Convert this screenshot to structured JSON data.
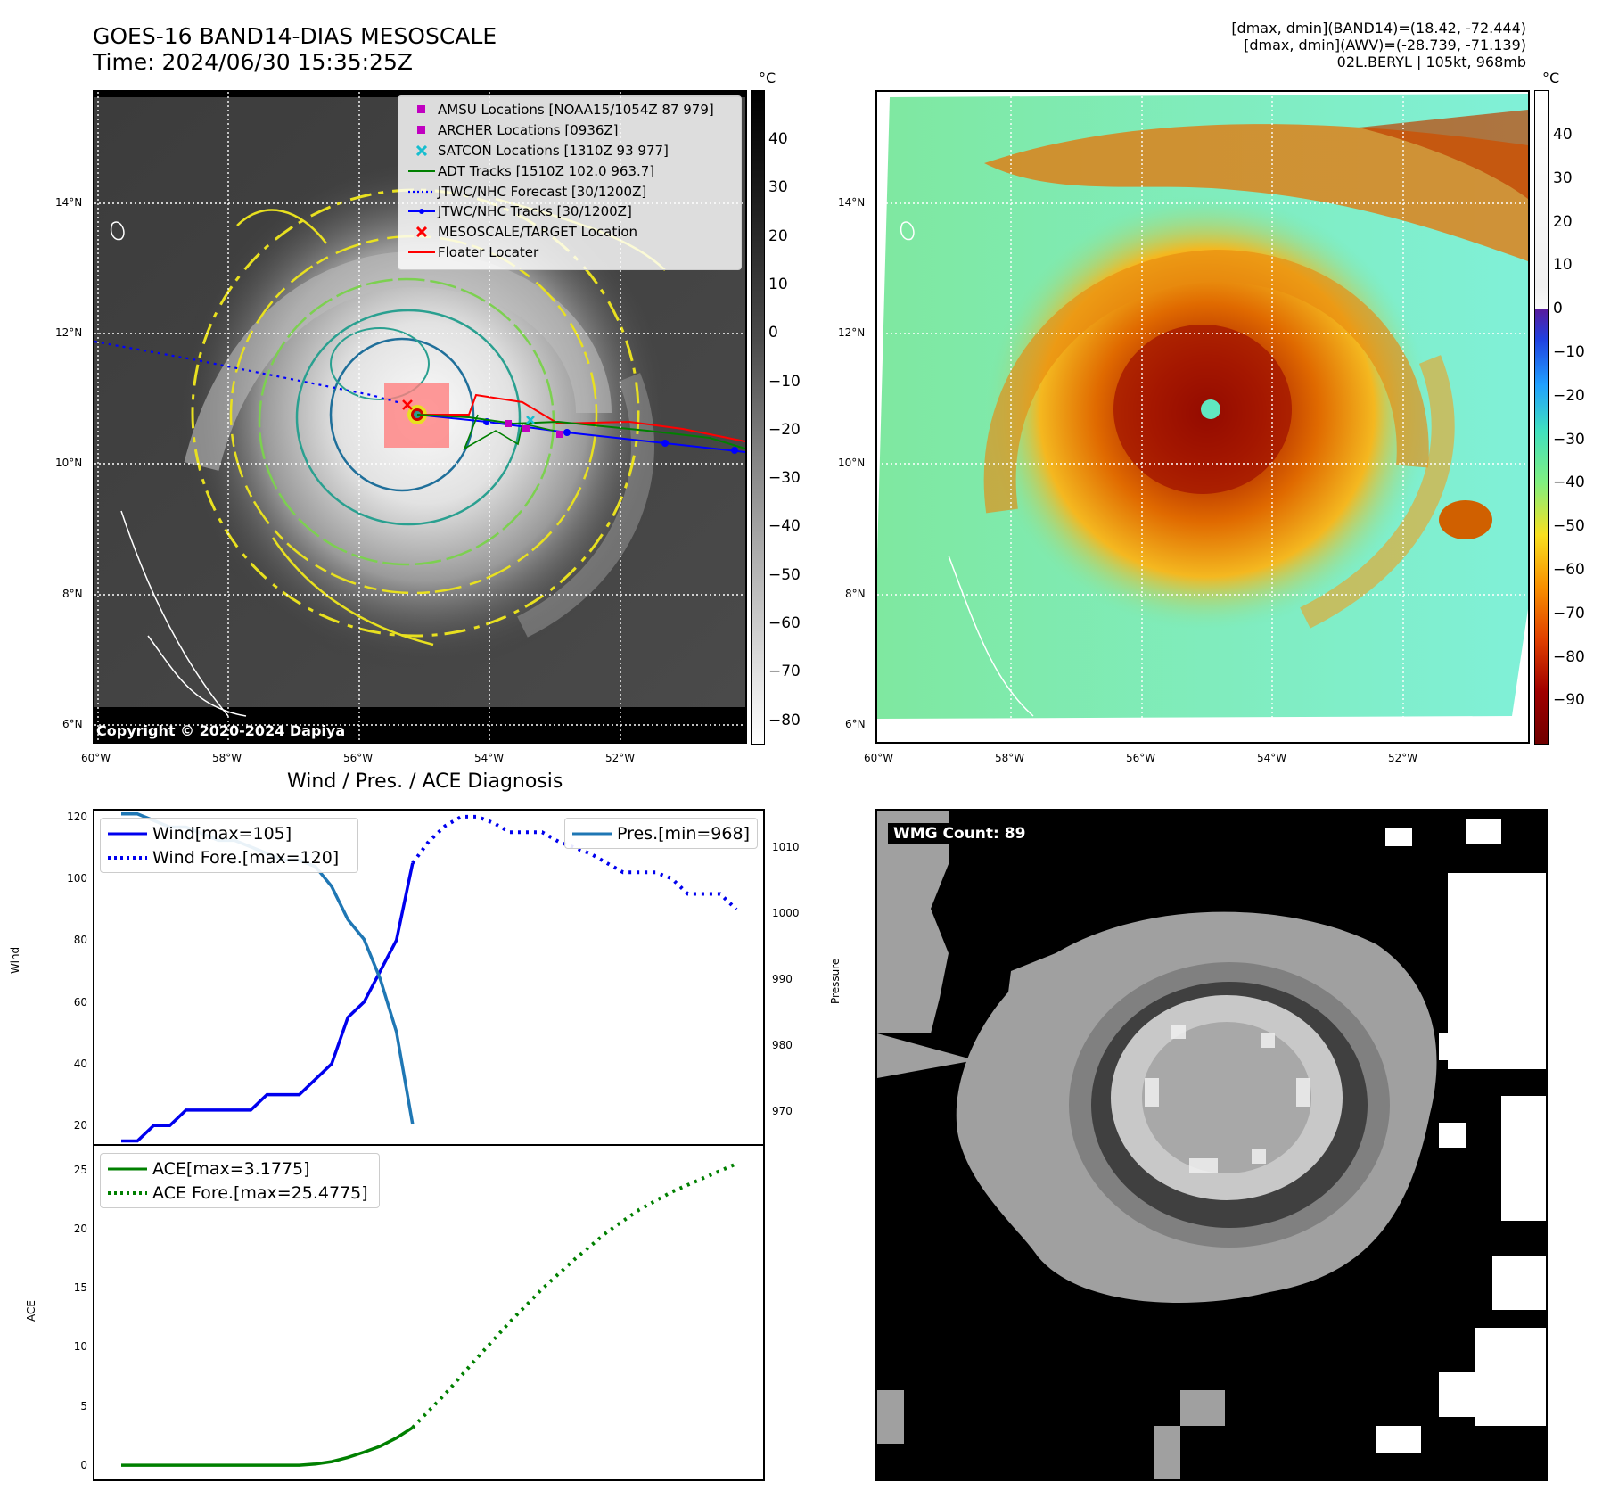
{
  "header": {
    "title_line1": "GOES-16 BAND14-DIAS MESOSCALE",
    "title_line2": "Time: 2024/06/30 15:35:25Z",
    "right_line1": "[dmax, dmin](BAND14)=(18.42, -72.444)",
    "right_line2": "[dmax, dmin](AWV)=(-28.739, -71.139)",
    "right_line3": "02L.BERYL | 105kt, 968mb"
  },
  "map": {
    "lon_labels": [
      "60°W",
      "58°W",
      "56°W",
      "54°W",
      "52°W"
    ],
    "lat_labels": [
      "14°N",
      "12°N",
      "10°N",
      "8°N",
      "6°N"
    ],
    "copyright": "Copyright © 2020-2024 Dapiya",
    "legend": [
      {
        "label": "AMSU Locations [NOAA15/1054Z 87 979]",
        "icon": "square-marker",
        "color": "#c000c0"
      },
      {
        "label": "ARCHER Locations [0936Z]",
        "icon": "square-marker",
        "color": "#c000c0"
      },
      {
        "label": "SATCON Locations [1310Z 93 977]",
        "icon": "x-marker",
        "color": "#17becf"
      },
      {
        "label": "ADT Tracks [1510Z 102.0 963.7]",
        "icon": "solid-line",
        "color": "#008000"
      },
      {
        "label": "JTWC/NHC Forecast [30/1200Z]",
        "icon": "dotted-line",
        "color": "#0000ff"
      },
      {
        "label": "JTWC/NHC Tracks [30/1200Z]",
        "icon": "line-dot",
        "color": "#0000ff"
      },
      {
        "label": "MESOSCALE/TARGET Location",
        "icon": "x-marker",
        "color": "#ff0000"
      },
      {
        "label": "Floater Locater",
        "icon": "solid-line",
        "color": "#ff0000"
      }
    ]
  },
  "colorbar_gray": {
    "unit": "°C",
    "ticks": [
      "40",
      "30",
      "20",
      "10",
      "0",
      "−10",
      "−20",
      "−30",
      "−40",
      "−50",
      "−60",
      "−70",
      "−80"
    ]
  },
  "colorbar_color": {
    "unit": "°C",
    "ticks": [
      "40",
      "30",
      "20",
      "10",
      "0",
      "−10",
      "−20",
      "−30",
      "−40",
      "−50",
      "−60",
      "−70",
      "−80",
      "−90"
    ]
  },
  "diagnosis": {
    "title": "Wind / Pres. / ACE Diagnosis"
  },
  "wmg": {
    "label": "WMG Count: 89"
  },
  "chart_data": [
    {
      "type": "line",
      "title": "Wind / Pres. / ACE Diagnosis",
      "ylabel": "Wind",
      "y2label": "Pressure",
      "ylim": [
        14,
        122
      ],
      "y2lim": [
        965,
        1015.5
      ],
      "yticks": [
        "20",
        "40",
        "60",
        "80",
        "100",
        "120"
      ],
      "y2ticks": [
        "970",
        "980",
        "990",
        "1000",
        "1010"
      ],
      "legend_left": [
        "Wind[max=105]",
        "Wind Fore.[max=120]"
      ],
      "legend_right": [
        "Pres.[min=968]"
      ],
      "series": [
        {
          "name": "Wind[max=105]",
          "color": "#0000ee",
          "style": "solid",
          "x": [
            0,
            1,
            2,
            3,
            4,
            5,
            6,
            7,
            8,
            9,
            10,
            11,
            12,
            13,
            14,
            15,
            16,
            17,
            18
          ],
          "values": [
            15,
            15,
            20,
            20,
            25,
            25,
            25,
            25,
            25,
            30,
            30,
            30,
            35,
            40,
            55,
            60,
            70,
            80,
            105
          ]
        },
        {
          "name": "Wind Fore.[max=120]",
          "color": "#0000ee",
          "style": "dotted",
          "x": [
            18,
            19,
            20,
            21,
            22,
            23,
            24,
            25,
            26,
            27,
            28,
            29,
            30,
            31,
            32,
            33,
            34,
            35,
            36,
            37,
            38
          ],
          "values": [
            105,
            112,
            117,
            120,
            120,
            118,
            115,
            115,
            115,
            112,
            110,
            108,
            105,
            102,
            102,
            102,
            100,
            95,
            95,
            95,
            90
          ]
        },
        {
          "name": "Pres.[min=968]",
          "color": "#1f77b4",
          "style": "solid",
          "axis": "right",
          "x": [
            0,
            1,
            2,
            3,
            4,
            5,
            6,
            7,
            8,
            9,
            10,
            11,
            12,
            13,
            14,
            15,
            16,
            17,
            18
          ],
          "values": [
            1015,
            1015,
            1014,
            1013,
            1013,
            1012,
            1011,
            1011,
            1010,
            1009,
            1008,
            1008,
            1007,
            1004,
            999,
            996,
            990,
            982,
            968
          ]
        }
      ]
    },
    {
      "type": "line",
      "ylabel": "ACE",
      "ylim": [
        -1.2,
        27
      ],
      "yticks": [
        "0",
        "5",
        "10",
        "15",
        "20",
        "25"
      ],
      "legend": [
        "ACE[max=3.1775]",
        "ACE Fore.[max=25.4775]"
      ],
      "series": [
        {
          "name": "ACE[max=3.1775]",
          "color": "#008000",
          "style": "solid",
          "x": [
            0,
            2,
            4,
            6,
            8,
            10,
            11,
            12,
            13,
            14,
            15,
            16,
            17,
            18
          ],
          "values": [
            0,
            0,
            0,
            0,
            0,
            0,
            0,
            0.1,
            0.3,
            0.65,
            1.1,
            1.6,
            2.3,
            3.18
          ]
        },
        {
          "name": "ACE Fore.[max=25.4775]",
          "color": "#008000",
          "style": "dotted",
          "x": [
            18,
            20,
            22,
            24,
            26,
            28,
            30,
            32,
            34,
            36,
            38
          ],
          "values": [
            3.18,
            6.0,
            9.1,
            12.1,
            14.9,
            17.4,
            19.7,
            21.6,
            23.1,
            24.3,
            25.48
          ]
        }
      ]
    }
  ]
}
